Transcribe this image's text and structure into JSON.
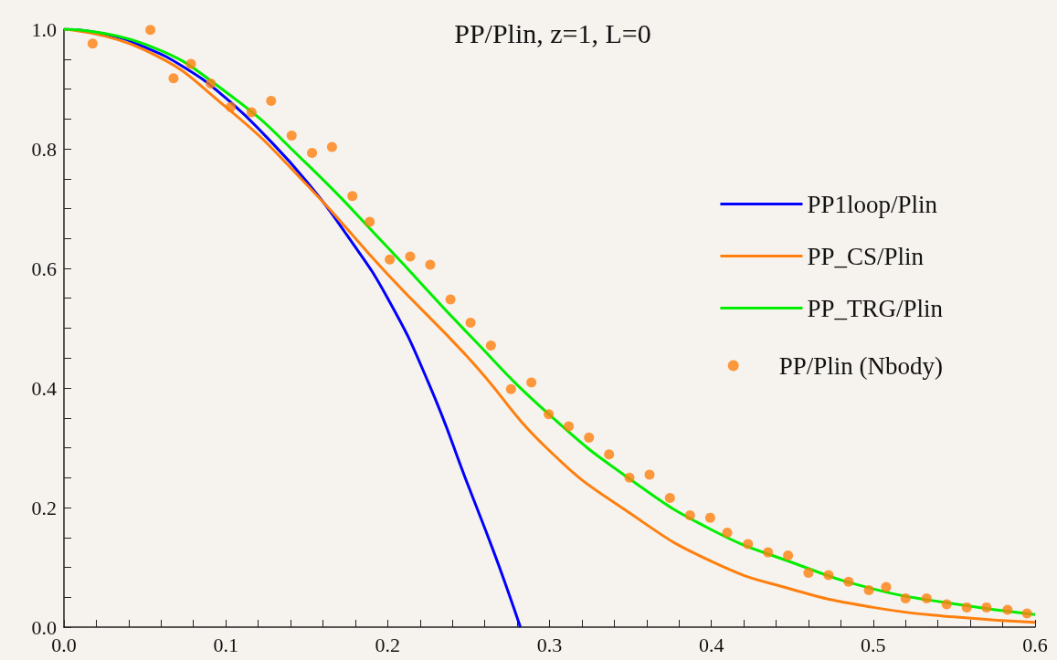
{
  "chart_data": {
    "type": "line",
    "title": "PP/Plin, z=1, L=0",
    "xlim": [
      0,
      0.6
    ],
    "ylim": [
      0,
      1.0
    ],
    "xticks": [
      {
        "value": 0,
        "label": "0.0"
      },
      {
        "value": 0.02,
        "label": null
      },
      {
        "value": 0.04,
        "label": null
      },
      {
        "value": 0.06,
        "label": null
      },
      {
        "value": 0.08,
        "label": null
      },
      {
        "value": 0.1,
        "label": "0.1"
      },
      {
        "value": 0.12,
        "label": null
      },
      {
        "value": 0.14,
        "label": null
      },
      {
        "value": 0.16,
        "label": null
      },
      {
        "value": 0.18,
        "label": null
      },
      {
        "value": 0.2,
        "label": "0.2"
      },
      {
        "value": 0.22,
        "label": null
      },
      {
        "value": 0.24,
        "label": null
      },
      {
        "value": 0.26,
        "label": null
      },
      {
        "value": 0.28,
        "label": null
      },
      {
        "value": 0.3,
        "label": "0.3"
      },
      {
        "value": 0.32,
        "label": null
      },
      {
        "value": 0.34,
        "label": null
      },
      {
        "value": 0.36,
        "label": null
      },
      {
        "value": 0.38,
        "label": null
      },
      {
        "value": 0.4,
        "label": "0.4"
      },
      {
        "value": 0.42,
        "label": null
      },
      {
        "value": 0.44,
        "label": null
      },
      {
        "value": 0.46,
        "label": null
      },
      {
        "value": 0.48,
        "label": null
      },
      {
        "value": 0.5,
        "label": "0.5"
      },
      {
        "value": 0.52,
        "label": null
      },
      {
        "value": 0.54,
        "label": null
      },
      {
        "value": 0.56,
        "label": null
      },
      {
        "value": 0.58,
        "label": null
      },
      {
        "value": 0.6,
        "label": "0.6"
      }
    ],
    "yticks": [
      {
        "value": 0,
        "label": "0.0"
      },
      {
        "value": 0.05,
        "label": null
      },
      {
        "value": 0.1,
        "label": null
      },
      {
        "value": 0.15,
        "label": null
      },
      {
        "value": 0.2,
        "label": "0.2"
      },
      {
        "value": 0.25,
        "label": null
      },
      {
        "value": 0.3,
        "label": null
      },
      {
        "value": 0.35,
        "label": null
      },
      {
        "value": 0.4,
        "label": "0.4"
      },
      {
        "value": 0.45,
        "label": null
      },
      {
        "value": 0.5,
        "label": null
      },
      {
        "value": 0.55,
        "label": null
      },
      {
        "value": 0.6,
        "label": "0.6"
      },
      {
        "value": 0.65,
        "label": null
      },
      {
        "value": 0.7,
        "label": null
      },
      {
        "value": 0.75,
        "label": null
      },
      {
        "value": 0.8,
        "label": "0.8"
      },
      {
        "value": 0.85,
        "label": null
      },
      {
        "value": 0.9,
        "label": null
      },
      {
        "value": 0.95,
        "label": null
      },
      {
        "value": 1.0,
        "label": "1.0"
      }
    ],
    "grid": false,
    "legend": "right",
    "marker": "none",
    "line_style": "solid",
    "series": [
      {
        "name": "PP1loop/Plin",
        "color": "#0000ff",
        "x": [
          0,
          0.025,
          0.05,
          0.075,
          0.1,
          0.125,
          0.15,
          0.175,
          0.2,
          0.225,
          0.25,
          0.265,
          0.275,
          0.282
        ],
        "values": [
          1,
          0.992,
          0.97,
          0.935,
          0.885,
          0.82,
          0.745,
          0.655,
          0.55,
          0.41,
          0.235,
          0.13,
          0.055,
          0
        ]
      },
      {
        "name": "PP_CS/Plin",
        "color": "#ff7f0e",
        "x": [
          0,
          0.05,
          0.1,
          0.15,
          0.2,
          0.25,
          0.3,
          0.35,
          0.4,
          0.45,
          0.5,
          0.55,
          0.6
        ],
        "values": [
          1,
          0.965,
          0.87,
          0.74,
          0.59,
          0.45,
          0.295,
          0.19,
          0.11,
          0.063,
          0.033,
          0.017,
          0.008
        ]
      },
      {
        "name": "PP_TRG/Plin",
        "color": "#00ee00",
        "x": [
          0,
          0.05,
          0.1,
          0.15,
          0.2,
          0.25,
          0.3,
          0.35,
          0.4,
          0.45,
          0.5,
          0.55,
          0.6
        ],
        "values": [
          1,
          0.975,
          0.895,
          0.775,
          0.635,
          0.49,
          0.355,
          0.247,
          0.163,
          0.108,
          0.064,
          0.039,
          0.021
        ]
      },
      {
        "name": "PP/Plin (Nbody)",
        "color": "#ff7f0e",
        "type": "scatter",
        "marker": "circle",
        "x": [
          0.0177,
          0.0534,
          0.0677,
          0.0785,
          0.0907,
          0.103,
          0.1159,
          0.128,
          0.1407,
          0.1533,
          0.1656,
          0.1782,
          0.1889,
          0.2013,
          0.2139,
          0.2263,
          0.2388,
          0.2512,
          0.2638,
          0.2762,
          0.2888,
          0.2995,
          0.3119,
          0.3244,
          0.3368,
          0.3494,
          0.3618,
          0.3744,
          0.3868,
          0.3993,
          0.4098,
          0.4226,
          0.435,
          0.4474,
          0.46,
          0.4724,
          0.4848,
          0.4973,
          0.508,
          0.52,
          0.533,
          0.5454,
          0.5578,
          0.57,
          0.583,
          0.595
        ],
        "values": [
          0.976,
          0.999,
          0.918,
          0.942,
          0.909,
          0.87,
          0.861,
          0.88,
          0.822,
          0.793,
          0.803,
          0.721,
          0.678,
          0.615,
          0.62,
          0.606,
          0.548,
          0.509,
          0.471,
          0.398,
          0.409,
          0.356,
          0.336,
          0.317,
          0.289,
          0.25,
          0.255,
          0.216,
          0.187,
          0.183,
          0.158,
          0.139,
          0.125,
          0.12,
          0.091,
          0.087,
          0.076,
          0.062,
          0.067,
          0.048,
          0.048,
          0.038,
          0.033,
          0.033,
          0.029,
          0.023
        ]
      }
    ]
  }
}
